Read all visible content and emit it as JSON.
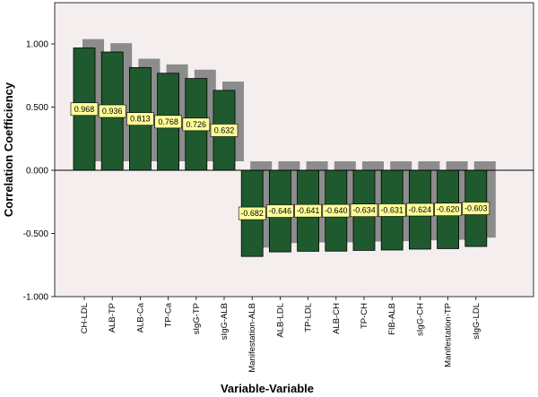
{
  "chart_data": {
    "type": "bar",
    "title": "",
    "xlabel": "Variable-Variable",
    "ylabel": "Correlation Coefficiency",
    "ylim": [
      -1.0,
      1.1
    ],
    "yticks": [
      1.0,
      0.5,
      0.0,
      -0.5,
      -1.0
    ],
    "ytick_labels": [
      "1.000",
      "0.500",
      "0.000",
      "-0.500",
      "-1.000"
    ],
    "categories": [
      "CH-LDL",
      "ALB-TP",
      "ALB-Ca",
      "TP-Ca",
      "sIgG-TP",
      "sIgG-ALB",
      "Manifestation-ALB",
      "ALB-LDL",
      "TP-LDL",
      "ALB-CH",
      "TP-CH",
      "FIB-ALB",
      "sIgG-CH",
      "Manifestation-TP",
      "sIgG-LDL"
    ],
    "values": [
      0.968,
      0.936,
      0.813,
      0.768,
      0.726,
      0.632,
      -0.682,
      -0.646,
      -0.641,
      -0.64,
      -0.634,
      -0.631,
      -0.624,
      -0.62,
      -0.603
    ],
    "data_labels": [
      "0.968",
      "0.936",
      "0.813",
      "0.768",
      "0.726",
      "0.632",
      "-0.682",
      "-0.646",
      "-0.641",
      "-0.640",
      "-0.634",
      "-0.631",
      "-0.624",
      "-0.620",
      "-0.603"
    ],
    "grid": false,
    "legend": "none",
    "style": "3d-shadow",
    "colors": {
      "bar": "#1f5a2f",
      "bar_stroke": "#000000",
      "shadow": "#8c8c8c",
      "plot_background": "#f4eeee",
      "label_box": "#ffff99"
    }
  }
}
